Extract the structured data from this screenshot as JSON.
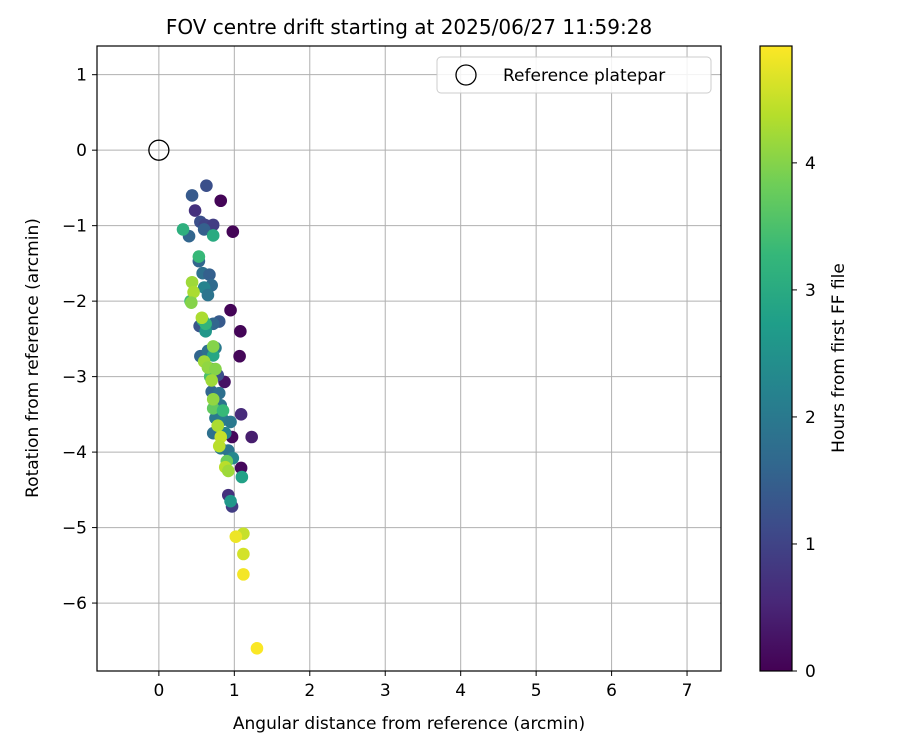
{
  "chart_data": {
    "type": "scatter",
    "title": "FOV centre drift starting at 2025/06/27 11:59:28",
    "xlabel": "Angular distance from reference (arcmin)",
    "ylabel": "Rotation from reference (arcmin)",
    "xlim": [
      -0.82,
      7.45
    ],
    "ylim": [
      -6.9,
      1.38
    ],
    "xticks": [
      0,
      1,
      2,
      3,
      4,
      5,
      6,
      7
    ],
    "yticks": [
      1,
      0,
      -1,
      -2,
      -3,
      -4,
      -5,
      -6
    ],
    "grid": true,
    "legend": {
      "placement": "top-right",
      "entries": [
        "Reference platepar"
      ]
    },
    "reference_point": {
      "x": 0,
      "y": 0,
      "name": "Reference platepar"
    },
    "colorbar": {
      "label": "Hours from first FF file",
      "min": 0,
      "max": 4.92,
      "ticks": [
        0,
        1,
        2,
        3,
        4
      ],
      "colormap": "viridis",
      "stops": [
        "#440154",
        "#482878",
        "#3e4989",
        "#31688e",
        "#26828e",
        "#1f9e89",
        "#35b779",
        "#6ece58",
        "#b5de2b",
        "#fde725"
      ]
    },
    "points": [
      {
        "x": 0.82,
        "y": -0.67,
        "h": 0.05
      },
      {
        "x": 0.98,
        "y": -1.08,
        "h": 0.05
      },
      {
        "x": 0.95,
        "y": -2.12,
        "h": 0.05
      },
      {
        "x": 1.08,
        "y": -2.4,
        "h": 0.05
      },
      {
        "x": 1.07,
        "y": -2.73,
        "h": 0.08
      },
      {
        "x": 0.87,
        "y": -3.07,
        "h": 0.25
      },
      {
        "x": 0.97,
        "y": -3.8,
        "h": 0.1
      },
      {
        "x": 1.23,
        "y": -3.8,
        "h": 0.4
      },
      {
        "x": 1.09,
        "y": -4.21,
        "h": 0.1
      },
      {
        "x": 1.09,
        "y": -3.5,
        "h": 0.6
      },
      {
        "x": 0.92,
        "y": -4.57,
        "h": 0.7
      },
      {
        "x": 0.97,
        "y": -4.72,
        "h": 0.9
      },
      {
        "x": 0.48,
        "y": -0.8,
        "h": 0.7
      },
      {
        "x": 0.63,
        "y": -0.47,
        "h": 1.2
      },
      {
        "x": 0.44,
        "y": -0.6,
        "h": 1.4
      },
      {
        "x": 0.55,
        "y": -0.95,
        "h": 1.2
      },
      {
        "x": 0.61,
        "y": -0.99,
        "h": 1.0
      },
      {
        "x": 0.72,
        "y": -0.99,
        "h": 0.9
      },
      {
        "x": 0.4,
        "y": -1.14,
        "h": 1.6
      },
      {
        "x": 0.6,
        "y": -1.05,
        "h": 1.5
      },
      {
        "x": 0.53,
        "y": -1.47,
        "h": 1.6
      },
      {
        "x": 0.58,
        "y": -1.63,
        "h": 1.8
      },
      {
        "x": 0.67,
        "y": -1.65,
        "h": 1.5
      },
      {
        "x": 0.7,
        "y": -1.79,
        "h": 1.7
      },
      {
        "x": 0.6,
        "y": -1.82,
        "h": 2.2
      },
      {
        "x": 0.65,
        "y": -1.92,
        "h": 1.9
      },
      {
        "x": 0.54,
        "y": -2.33,
        "h": 1.3
      },
      {
        "x": 0.8,
        "y": -2.27,
        "h": 1.4
      },
      {
        "x": 0.72,
        "y": -2.3,
        "h": 1.6
      },
      {
        "x": 0.63,
        "y": -2.35,
        "h": 1.9
      },
      {
        "x": 0.55,
        "y": -2.73,
        "h": 1.6
      },
      {
        "x": 0.65,
        "y": -2.66,
        "h": 1.8
      },
      {
        "x": 0.75,
        "y": -2.62,
        "h": 2.0
      },
      {
        "x": 0.7,
        "y": -2.9,
        "h": 1.7
      },
      {
        "x": 0.78,
        "y": -2.98,
        "h": 1.2
      },
      {
        "x": 0.7,
        "y": -3.2,
        "h": 1.6
      },
      {
        "x": 0.8,
        "y": -3.22,
        "h": 1.8
      },
      {
        "x": 0.82,
        "y": -3.38,
        "h": 1.9
      },
      {
        "x": 0.75,
        "y": -3.55,
        "h": 2.0
      },
      {
        "x": 0.85,
        "y": -3.57,
        "h": 2.1
      },
      {
        "x": 0.95,
        "y": -3.6,
        "h": 2.0
      },
      {
        "x": 0.72,
        "y": -3.75,
        "h": 1.8
      },
      {
        "x": 0.88,
        "y": -3.75,
        "h": 2.2
      },
      {
        "x": 0.82,
        "y": -3.95,
        "h": 2.0
      },
      {
        "x": 0.92,
        "y": -3.98,
        "h": 1.9
      },
      {
        "x": 0.98,
        "y": -4.08,
        "h": 2.3
      },
      {
        "x": 1.1,
        "y": -4.33,
        "h": 2.8
      },
      {
        "x": 0.95,
        "y": -4.65,
        "h": 2.6
      },
      {
        "x": 0.58,
        "y": -2.25,
        "h": 3.0
      },
      {
        "x": 0.62,
        "y": -2.4,
        "h": 2.6
      },
      {
        "x": 0.72,
        "y": -2.72,
        "h": 2.9
      },
      {
        "x": 0.32,
        "y": -1.05,
        "h": 3.1
      },
      {
        "x": 0.72,
        "y": -1.13,
        "h": 3.0
      },
      {
        "x": 0.53,
        "y": -1.41,
        "h": 3.3
      },
      {
        "x": 0.42,
        "y": -2.0,
        "h": 3.4
      },
      {
        "x": 0.62,
        "y": -2.3,
        "h": 3.2
      },
      {
        "x": 0.68,
        "y": -3.0,
        "h": 3.5
      },
      {
        "x": 0.72,
        "y": -3.42,
        "h": 3.7
      },
      {
        "x": 0.85,
        "y": -3.45,
        "h": 3.3
      },
      {
        "x": 0.9,
        "y": -4.12,
        "h": 3.8
      },
      {
        "x": 0.44,
        "y": -1.75,
        "h": 4.2
      },
      {
        "x": 0.46,
        "y": -1.88,
        "h": 4.3
      },
      {
        "x": 0.43,
        "y": -2.02,
        "h": 4.0
      },
      {
        "x": 0.57,
        "y": -2.22,
        "h": 4.3
      },
      {
        "x": 0.72,
        "y": -2.6,
        "h": 4.0
      },
      {
        "x": 0.6,
        "y": -2.8,
        "h": 4.2
      },
      {
        "x": 0.65,
        "y": -2.88,
        "h": 4.1
      },
      {
        "x": 0.75,
        "y": -2.9,
        "h": 4.0
      },
      {
        "x": 0.7,
        "y": -3.05,
        "h": 4.2
      },
      {
        "x": 0.72,
        "y": -3.3,
        "h": 4.1
      },
      {
        "x": 0.78,
        "y": -3.65,
        "h": 4.3
      },
      {
        "x": 0.82,
        "y": -3.8,
        "h": 4.5
      },
      {
        "x": 0.8,
        "y": -3.92,
        "h": 4.4
      },
      {
        "x": 0.88,
        "y": -4.2,
        "h": 4.4
      },
      {
        "x": 0.92,
        "y": -4.25,
        "h": 4.2
      },
      {
        "x": 1.12,
        "y": -5.08,
        "h": 4.5
      },
      {
        "x": 1.02,
        "y": -5.12,
        "h": 4.8
      },
      {
        "x": 1.12,
        "y": -5.35,
        "h": 4.6
      },
      {
        "x": 1.12,
        "y": -5.62,
        "h": 4.85
      },
      {
        "x": 1.3,
        "y": -6.6,
        "h": 4.9
      }
    ]
  }
}
